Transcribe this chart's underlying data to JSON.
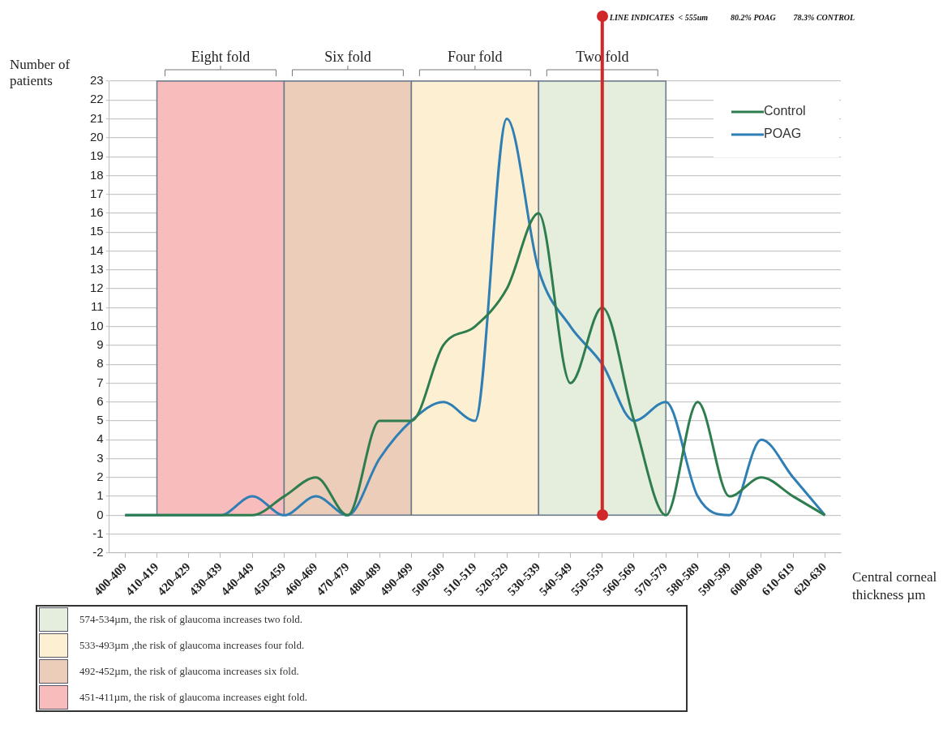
{
  "chart_data": {
    "type": "line",
    "categories": [
      "400-409",
      "410-419",
      "420-429",
      "430-439",
      "440-449",
      "450-459",
      "460-469",
      "470-479",
      "480-489",
      "490-499",
      "500-509",
      "510-519",
      "520-529",
      "530-539",
      "540-549",
      "550-559",
      "560-569",
      "570-579",
      "580-589",
      "590-599",
      "600-609",
      "610-619",
      "620-630"
    ],
    "series": [
      {
        "name": "Control",
        "color": "#2e7d4f",
        "values": [
          0,
          0,
          0,
          0,
          0,
          1,
          2,
          0,
          5,
          5,
          9,
          10,
          12,
          16,
          7,
          11,
          5,
          0,
          6,
          1,
          2,
          1,
          0
        ]
      },
      {
        "name": "POAG",
        "color": "#2f7fb5",
        "values": [
          0,
          0,
          0,
          0,
          1,
          0,
          1,
          0,
          3,
          5,
          6,
          5,
          21,
          13,
          10,
          8,
          5,
          6,
          1,
          0,
          4,
          2,
          0
        ]
      }
    ],
    "ylabel": "Number of patients",
    "xlabel": "Central corneal thickness µm",
    "ylim": [
      -2,
      23
    ],
    "yticks": [
      -2,
      -1,
      0,
      1,
      2,
      3,
      4,
      5,
      6,
      7,
      8,
      9,
      10,
      11,
      12,
      13,
      14,
      15,
      16,
      17,
      18,
      19,
      20,
      21,
      22,
      23
    ],
    "grid": "y",
    "legend": "top right",
    "marker": "none",
    "line_style": "solid",
    "bands": [
      {
        "axis": "x",
        "from": "410-419",
        "to": "450-459",
        "label": "Eight fold",
        "color": "#f9bcbc"
      },
      {
        "axis": "x",
        "from": "450-459",
        "to": "490-499",
        "label": "Six fold",
        "color": "#ebcdb9"
      },
      {
        "axis": "x",
        "from": "490-499",
        "to": "530-539",
        "label": "Four fold",
        "color": "#fdefd2"
      },
      {
        "axis": "x",
        "from": "530-539",
        "to": "570-579",
        "label": "Two fold",
        "color": "#e5eedc"
      }
    ],
    "ref_lines": [
      {
        "axis": "x",
        "value": "550-559",
        "label": "LINE INDICATES  < 555um",
        "color": "#d0282a"
      }
    ],
    "annotations": [
      "80.2% POAG",
      "78.3% CONTROL",
      "574-534µm, the risk of glaucoma increases two fold.",
      "533-493µm ,the risk of glaucoma increases four fold.",
      "492-452µm, the risk of glaucoma increases six fold.",
      "451-411µm, the risk of glaucoma increases eight fold."
    ]
  }
}
